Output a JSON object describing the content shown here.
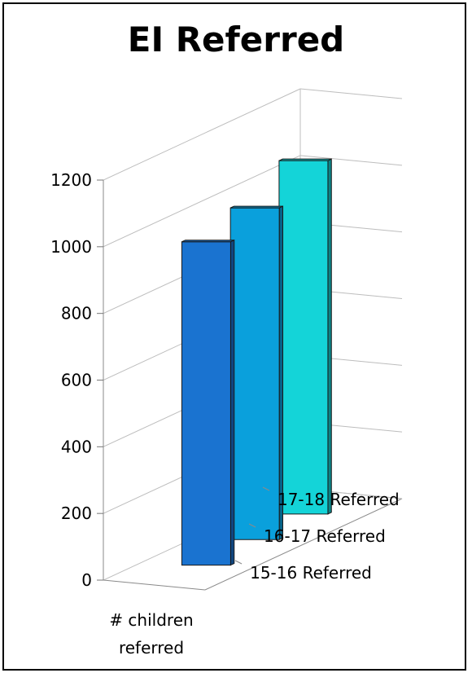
{
  "chart_data": {
    "type": "bar",
    "title": "EI Referred",
    "categories": [
      "# children referred"
    ],
    "category_lines": [
      "# children",
      "referred"
    ],
    "series": [
      {
        "name": "15-16 Referred",
        "values": [
          970
        ],
        "color": "#1a73d0"
      },
      {
        "name": "16-17 Referred",
        "values": [
          995
        ],
        "color": "#0aa0dc"
      },
      {
        "name": "17-18 Referred",
        "values": [
          1060
        ],
        "color": "#14d4d8"
      }
    ],
    "ylim": [
      0,
      1200
    ],
    "yticks": [
      0,
      200,
      400,
      600,
      800,
      1000,
      1200
    ],
    "grid": true
  }
}
